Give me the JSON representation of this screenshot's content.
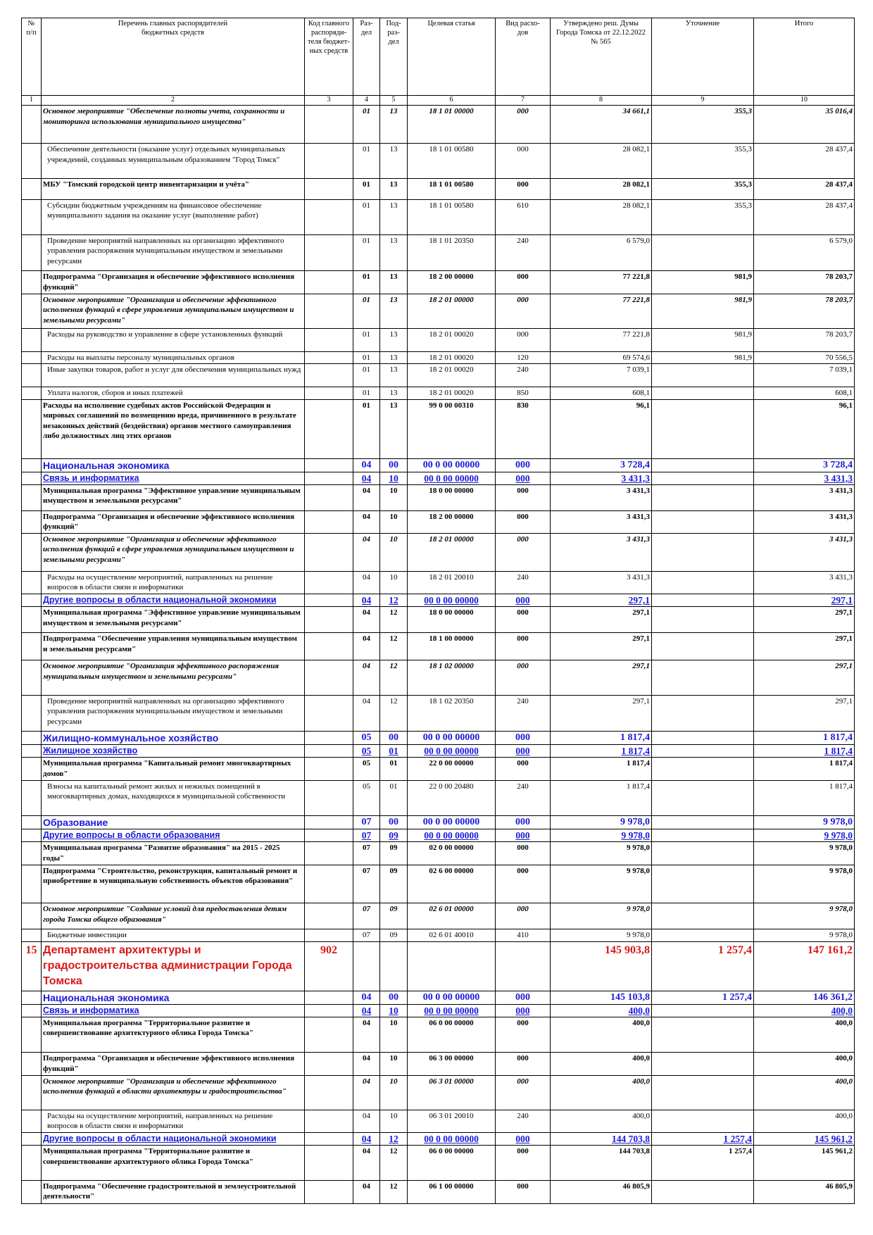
{
  "table": {
    "header": [
      "№\nп/п",
      "Перечень главных распорядителей\nбюджетных средств",
      "Код главного\nраспоряди-\nтеля бюджет-\nных средств",
      "Раз-\nдел",
      "Под-\nраз-\nдел",
      "Целевая статья",
      "Вид расхо-\nдов",
      "Утверждено реш. Думы\nГорода Томска от 22.12.2022\n№ 565",
      "Уточнение",
      "Итого"
    ],
    "column_numbers": [
      "1",
      "2",
      "3",
      "4",
      "5",
      "6",
      "7",
      "8",
      "9",
      "10"
    ],
    "rows": [
      [
        null,
        "Основное мероприятие \"Обеспечение полноты учета, сохранности и мониторинга использования муниципального имущества\"",
        null,
        "01",
        "13",
        "18 1 01 00000",
        "000",
        "34 661,1",
        "355,3",
        "35 016,4"
      ],
      [
        null,
        "Обеспечение деятельности (оказание услуг) отдельных муниципальных учреждений, созданных муниципальным образованием \"Город Томск\"",
        null,
        "01",
        "13",
        "18 1 01 00580",
        "000",
        "28 082,1",
        "355,3",
        "28 437,4"
      ],
      [
        null,
        "МБУ \"Томский городской центр инвентаризации и учёта\"",
        null,
        "01",
        "13",
        "18 1 01 00580",
        "000",
        "28 082,1",
        "355,3",
        "28 437,4"
      ],
      [
        null,
        "Субсидии бюджетным учреждениям на финансовое обеспечение муниципального задания на оказание услуг (выполнение работ)",
        null,
        "01",
        "13",
        "18 1 01 00580",
        "610",
        "28 082,1",
        "355,3",
        "28 437,4"
      ],
      [
        null,
        "Проведение мероприятий направленных на организацию эффективного управления распоряжения муниципальным имуществом и земельными ресурсами",
        null,
        "01",
        "13",
        "18 1 01 20350",
        "240",
        "6 579,0",
        null,
        "6 579,0"
      ],
      [
        null,
        "Подпрограмма \"Организация и обеспечение эффективного исполнения функций\"",
        null,
        "01",
        "13",
        "18 2 00 00000",
        "000",
        "77 221,8",
        "981,9",
        "78 203,7"
      ],
      [
        null,
        "Основное мероприятие \"Организация и обеспечение эффективного исполнения функций в сфере управления муниципальным имуществом и земельными ресурсами\"",
        null,
        "01",
        "13",
        "18 2 01 00000",
        "000",
        "77 221,8",
        "981,9",
        "78 203,7"
      ],
      [
        null,
        "Расходы на руководство и управление в сфере установленных функций",
        null,
        "01",
        "13",
        "18 2 01 00020",
        "000",
        "77 221,8",
        "981,9",
        "78 203,7"
      ],
      [
        null,
        "Расходы на выплаты персоналу муниципальных органов",
        null,
        "01",
        "13",
        "18 2 01 00020",
        "120",
        "69 574,6",
        "981,9",
        "70 556,5"
      ],
      [
        null,
        "Иные закупки товаров, работ и услуг для обеспечения муниципальных нужд",
        null,
        "01",
        "13",
        "18 2 01 00020",
        "240",
        "7 039,1",
        null,
        "7 039,1"
      ],
      [
        null,
        "Уплата налогов, сборов и иных платежей",
        null,
        "01",
        "13",
        "18 2 01 00020",
        "850",
        "608,1",
        null,
        "608,1"
      ],
      [
        null,
        "Расходы на исполнение судебных актов Российской Федерации и мировых соглашений по возмещению вреда, причиненного в результате незаконных действий (бездействия) органов местного самоуправления либо должностных лиц этих органов",
        null,
        "01",
        "13",
        "99 0 00 00310",
        "830",
        "96,1",
        null,
        "96,1"
      ],
      [
        null,
        "Национальная экономика",
        null,
        "04",
        "00",
        "00 0 00 00000",
        "000",
        "3 728,4",
        null,
        "3 728,4"
      ],
      [
        null,
        "Связь и информатика",
        null,
        "04",
        "10",
        "00 0 00 00000",
        "000",
        "3 431,3",
        null,
        "3 431,3"
      ],
      [
        null,
        "Муниципальная программа \"Эффективное управление муниципальным имуществом и земельными ресурсами\"",
        null,
        "04",
        "10",
        "18 0 00 00000",
        "000",
        "3 431,3",
        null,
        "3 431,3"
      ],
      [
        null,
        "Подпрограмма \"Организация и обеспечение эффективного исполнения функций\"",
        null,
        "04",
        "10",
        "18 2 00 00000",
        "000",
        "3 431,3",
        null,
        "3 431,3"
      ],
      [
        null,
        "Основное мероприятие \"Организация и обеспечение эффективного исполнения функций в сфере управления муниципальным имуществом и земельными ресурсами\"",
        null,
        "04",
        "10",
        "18 2 01 00000",
        "000",
        "3 431,3",
        null,
        "3 431,3"
      ],
      [
        null,
        "Расходы на осуществление мероприятий, направленных на решение вопросов в области связи и информатики",
        null,
        "04",
        "10",
        "18 2 01 20010",
        "240",
        "3 431,3",
        null,
        "3 431,3"
      ],
      [
        null,
        "Другие вопросы в области национальной экономики",
        null,
        "04",
        "12",
        "00 0 00 00000",
        "000",
        "297,1",
        null,
        "297,1"
      ],
      [
        null,
        "Муниципальная программа \"Эффективное управление муниципальным имуществом и земельными ресурсами\"",
        null,
        "04",
        "12",
        "18 0 00 00000",
        "000",
        "297,1",
        null,
        "297,1"
      ],
      [
        null,
        "Подпрограмма \"Обеспечение управления муниципальным имуществом и земельными ресурсами\"",
        null,
        "04",
        "12",
        "18 1 00 00000",
        "000",
        "297,1",
        null,
        "297,1"
      ],
      [
        null,
        "Основное мероприятие \"Организация эффективного распоряжения муниципальным имуществом и земельными ресурсами\"",
        null,
        "04",
        "12",
        "18 1 02 00000",
        "000",
        "297,1",
        null,
        "297,1"
      ],
      [
        null,
        "Проведение мероприятий направленных на организацию эффективного управления распоряжения муниципальным имуществом и земельными ресурсами",
        null,
        "04",
        "12",
        "18 1 02 20350",
        "240",
        "297,1",
        null,
        "297,1"
      ],
      [
        null,
        "Жилищно-коммунальное хозяйство",
        null,
        "05",
        "00",
        "00 0 00 00000",
        "000",
        "1 817,4",
        null,
        "1 817,4"
      ],
      [
        null,
        "Жилищное хозяйство",
        null,
        "05",
        "01",
        "00 0 00 00000",
        "000",
        "1 817,4",
        null,
        "1 817,4"
      ],
      [
        null,
        "Муниципальная программа \"Капитальный ремонт многоквартирных домов\"",
        null,
        "05",
        "01",
        "22 0 00 00000",
        "000",
        "1 817,4",
        null,
        "1 817,4"
      ],
      [
        null,
        "Взносы на капитальный ремонт жилых и нежилых помещений в многоквартирных домах, находящихся в муниципальной собственности",
        null,
        "05",
        "01",
        "22 0 00 20480",
        "240",
        "1 817,4",
        null,
        "1 817,4"
      ],
      [
        null,
        "Образование",
        null,
        "07",
        "00",
        "00 0 00 00000",
        "000",
        "9 978,0",
        null,
        "9 978,0"
      ],
      [
        null,
        "Другие вопросы в области образования",
        null,
        "07",
        "09",
        "00 0 00 00000",
        "000",
        "9 978,0",
        null,
        "9 978,0"
      ],
      [
        null,
        "Муниципальная программа \"Развитие образования\" на 2015 - 2025 годы\"",
        null,
        "07",
        "09",
        "02 0 00 00000",
        "000",
        "9 978,0",
        null,
        "9 978,0"
      ],
      [
        null,
        "Подпрограмма \"Строительство, реконструкция, капитальный ремонт и приобретение в муниципальную собственность объектов образования\"",
        null,
        "07",
        "09",
        "02 6 00 00000",
        "000",
        "9 978,0",
        null,
        "9 978,0"
      ],
      [
        null,
        "Основное мероприятие \"Создание условий для предоставления детям города Томска общего образования\"",
        null,
        "07",
        "09",
        "02 6 01 00000",
        "000",
        "9 978,0",
        null,
        "9 978,0"
      ],
      [
        null,
        "Бюджетные инвестиции",
        null,
        "07",
        "09",
        "02 6 01 40010",
        "410",
        "9 978,0",
        null,
        "9 978,0"
      ],
      [
        "15",
        "Департамент архитектуры и градостроительства администрации Города Томска",
        "902",
        null,
        null,
        null,
        null,
        "145 903,8",
        "1 257,4",
        "147 161,2"
      ],
      [
        null,
        "Национальная экономика",
        null,
        "04",
        "00",
        "00 0 00 00000",
        "000",
        "145 103,8",
        "1 257,4",
        "146 361,2"
      ],
      [
        null,
        "Связь и информатика",
        null,
        "04",
        "10",
        "00 0 00 00000",
        "000",
        "400,0",
        null,
        "400,0"
      ],
      [
        null,
        "Муниципальная программа \"Территориальное развитие и совершенствование архитектурного облика Города Томска\"",
        null,
        "04",
        "10",
        "06 0 00 00000",
        "000",
        "400,0",
        null,
        "400,0"
      ],
      [
        null,
        "Подпрограмма \"Организация и обеспечение эффективного исполнения функций\"",
        null,
        "04",
        "10",
        "06 3 00 00000",
        "000",
        "400,0",
        null,
        "400,0"
      ],
      [
        null,
        "Основное мероприятие \"Организация и обеспечение эффективного исполнения функций в области архитектуры и градостроительства\"",
        null,
        "04",
        "10",
        "06 3 01 00000",
        "000",
        "400,0",
        null,
        "400,0"
      ],
      [
        null,
        "Расходы на осуществление мероприятий, направленных на решение вопросов в области связи и информатики",
        null,
        "04",
        "10",
        "06 3 01 20010",
        "240",
        "400,0",
        null,
        "400,0"
      ],
      [
        null,
        "Другие вопросы в области национальной экономики",
        null,
        "04",
        "12",
        "00 0 00 00000",
        "000",
        "144 703,8",
        "1 257,4",
        "145 961,2"
      ],
      [
        null,
        "Муниципальная программа \"Территориальное развитие и совершенствование архитектурного облика Города Томска\"",
        null,
        "04",
        "12",
        "06 0 00 00000",
        "000",
        "144 703,8",
        "1 257,4",
        "145 961,2"
      ],
      [
        null,
        "Подпрограмма \"Обеспечение градостроительной и землеустроительной деятельности\"",
        null,
        "04",
        "12",
        "06 1 00 00000",
        "000",
        "46 805,9",
        null,
        "46 805,9"
      ]
    ]
  }
}
